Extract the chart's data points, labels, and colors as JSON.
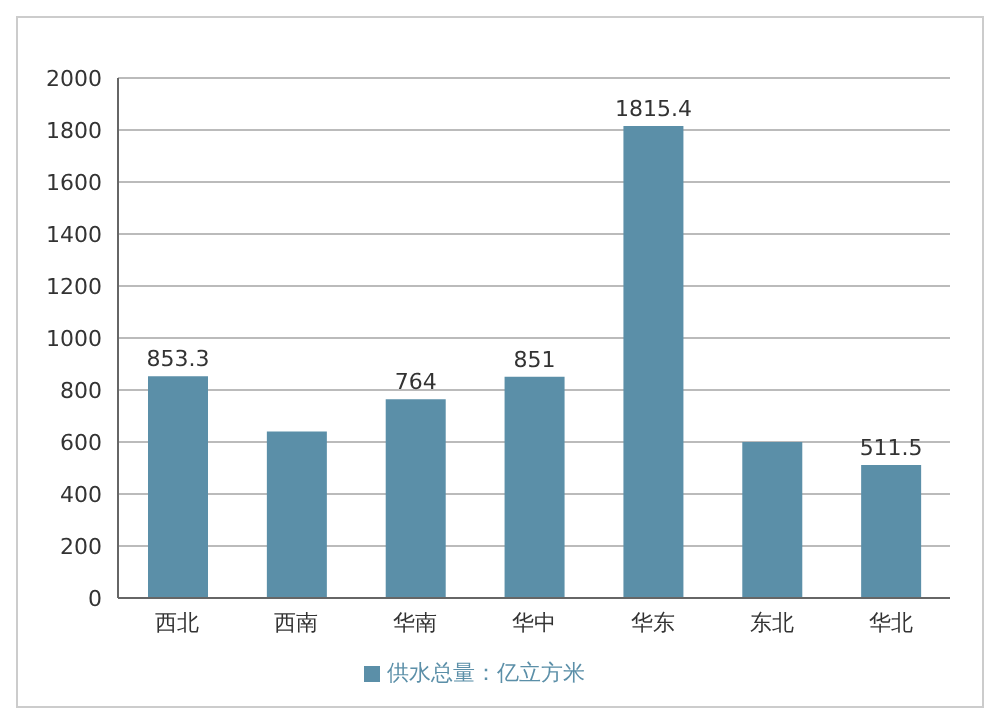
{
  "chart_data": {
    "type": "bar",
    "categories": [
      "西北",
      "西南",
      "华南",
      "华中",
      "华东",
      "东北",
      "华北"
    ],
    "series": [
      {
        "name": "供水总量：亿立方米",
        "color": "#5b8fa8",
        "values": [
          853.3,
          640,
          764,
          851,
          1815.4,
          600,
          511.5
        ],
        "value_labels": [
          "853.3",
          null,
          "764",
          "851",
          "1815.4",
          null,
          "511.5"
        ]
      }
    ],
    "ylim": [
      0,
      2000
    ],
    "yticks": [
      0,
      200,
      400,
      600,
      800,
      1000,
      1200,
      1400,
      1600,
      1800,
      2000
    ],
    "grid": "y",
    "legend": "bottom"
  }
}
